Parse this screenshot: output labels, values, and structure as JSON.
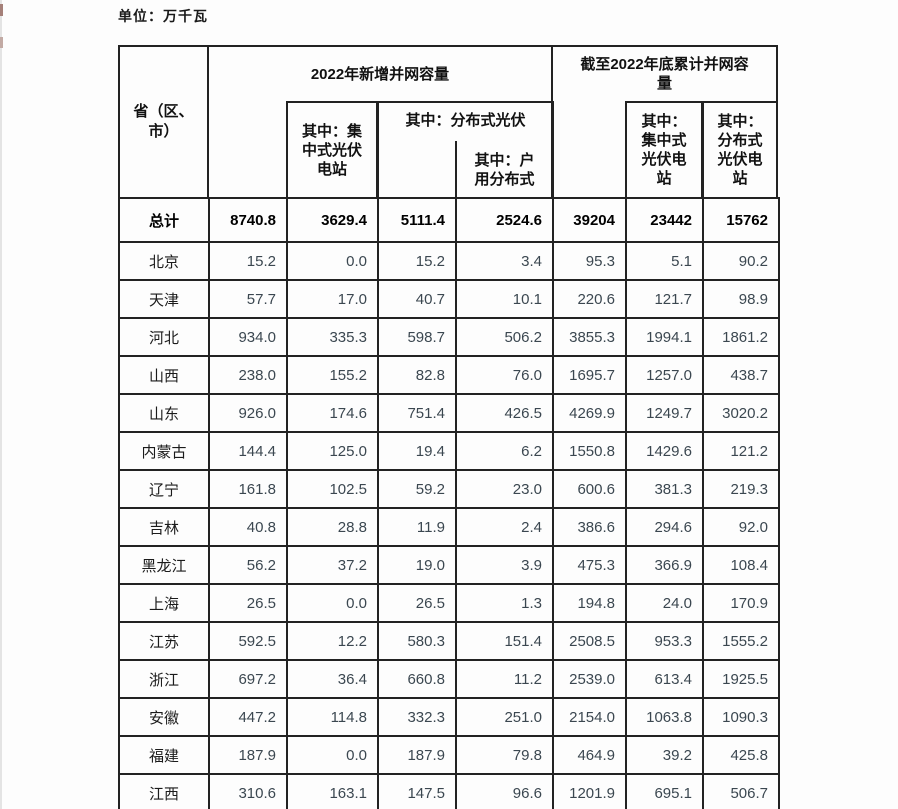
{
  "page": {
    "unit_label": "单位：万千瓦"
  },
  "colors": {
    "border": "#222222",
    "header_text": "#111111",
    "value_text": "#3b4750",
    "page_bg": "#fdfdfd"
  },
  "table": {
    "province_header": "省（区、\n市）",
    "group_new": {
      "title": "2022年新增并网容量",
      "sub_centralized": "其中：集\n中式光伏\n电站",
      "sub_distributed": "其中：分布式光伏",
      "sub_household": "其中：户\n用分布式"
    },
    "group_cumulative": {
      "title": "截至2022年底累计并网容\n量",
      "sub_centralized": "其中：\n集中式\n光伏电\n站",
      "sub_distributed": "其中：\n分布式\n光伏电\n站"
    },
    "rows": [
      {
        "name": "总计",
        "bold": true,
        "values": [
          "8740.8",
          "3629.4",
          "5111.4",
          "2524.6",
          "39204",
          "23442",
          "15762"
        ]
      },
      {
        "name": "北京",
        "bold": false,
        "values": [
          "15.2",
          "0.0",
          "15.2",
          "3.4",
          "95.3",
          "5.1",
          "90.2"
        ]
      },
      {
        "name": "天津",
        "bold": false,
        "values": [
          "57.7",
          "17.0",
          "40.7",
          "10.1",
          "220.6",
          "121.7",
          "98.9"
        ]
      },
      {
        "name": "河北",
        "bold": false,
        "values": [
          "934.0",
          "335.3",
          "598.7",
          "506.2",
          "3855.3",
          "1994.1",
          "1861.2"
        ]
      },
      {
        "name": "山西",
        "bold": false,
        "values": [
          "238.0",
          "155.2",
          "82.8",
          "76.0",
          "1695.7",
          "1257.0",
          "438.7"
        ]
      },
      {
        "name": "山东",
        "bold": false,
        "values": [
          "926.0",
          "174.6",
          "751.4",
          "426.5",
          "4269.9",
          "1249.7",
          "3020.2"
        ]
      },
      {
        "name": "内蒙古",
        "bold": false,
        "values": [
          "144.4",
          "125.0",
          "19.4",
          "6.2",
          "1550.8",
          "1429.6",
          "121.2"
        ]
      },
      {
        "name": "辽宁",
        "bold": false,
        "values": [
          "161.8",
          "102.5",
          "59.2",
          "23.0",
          "600.6",
          "381.3",
          "219.3"
        ]
      },
      {
        "name": "吉林",
        "bold": false,
        "values": [
          "40.8",
          "28.8",
          "11.9",
          "2.4",
          "386.6",
          "294.6",
          "92.0"
        ]
      },
      {
        "name": "黑龙江",
        "bold": false,
        "values": [
          "56.2",
          "37.2",
          "19.0",
          "3.9",
          "475.3",
          "366.9",
          "108.4"
        ]
      },
      {
        "name": "上海",
        "bold": false,
        "values": [
          "26.5",
          "0.0",
          "26.5",
          "1.3",
          "194.8",
          "24.0",
          "170.9"
        ]
      },
      {
        "name": "江苏",
        "bold": false,
        "values": [
          "592.5",
          "12.2",
          "580.3",
          "151.4",
          "2508.5",
          "953.3",
          "1555.2"
        ]
      },
      {
        "name": "浙江",
        "bold": false,
        "values": [
          "697.2",
          "36.4",
          "660.8",
          "11.2",
          "2539.0",
          "613.4",
          "1925.5"
        ]
      },
      {
        "name": "安徽",
        "bold": false,
        "values": [
          "447.2",
          "114.8",
          "332.3",
          "251.0",
          "2154.0",
          "1063.8",
          "1090.3"
        ]
      },
      {
        "name": "福建",
        "bold": false,
        "values": [
          "187.9",
          "0.0",
          "187.9",
          "79.8",
          "464.9",
          "39.2",
          "425.8"
        ]
      },
      {
        "name": "江西",
        "bold": false,
        "values": [
          "310.6",
          "163.1",
          "147.5",
          "96.6",
          "1201.9",
          "695.1",
          "506.7"
        ]
      }
    ]
  }
}
